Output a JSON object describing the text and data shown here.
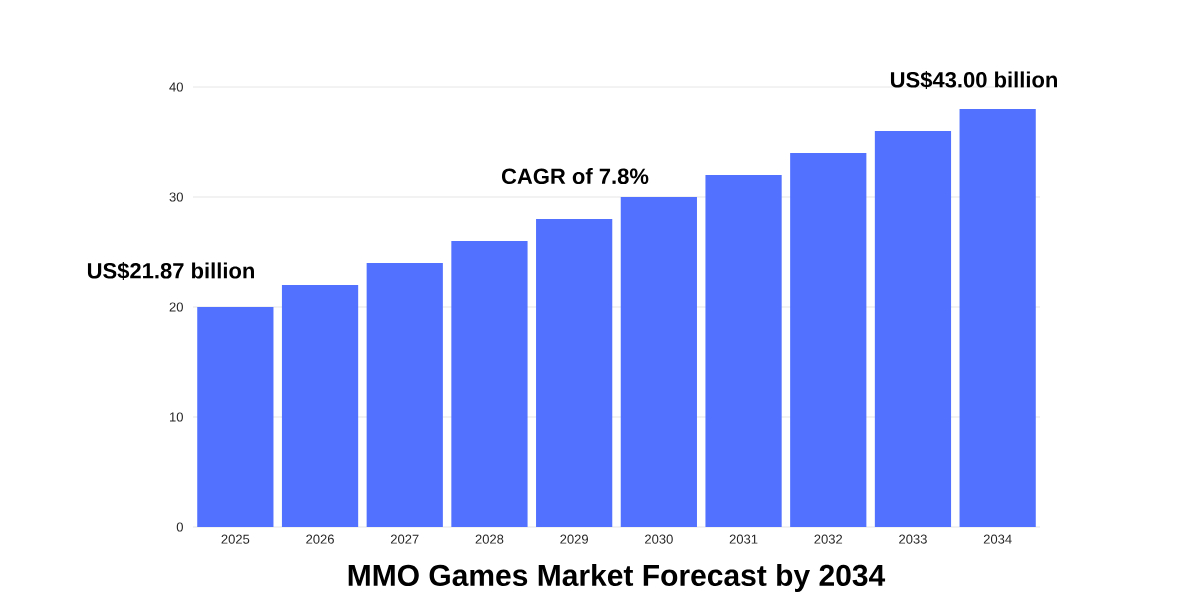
{
  "chart_data": {
    "type": "bar",
    "title": "MMO Games Market Forecast by 2034",
    "categories": [
      "2025",
      "2026",
      "2027",
      "2028",
      "2029",
      "2030",
      "2031",
      "2032",
      "2033",
      "2034"
    ],
    "values": [
      20,
      22,
      24,
      26,
      28,
      30,
      32,
      34,
      36,
      38
    ],
    "color": "#5271ff",
    "ylim": [
      0,
      40
    ],
    "yticks": [
      0,
      10,
      20,
      30,
      40
    ],
    "grid": "y",
    "annotations": [
      "US$21.87 billion",
      "CAGR of 7.8%",
      "US$43.00 billion"
    ]
  }
}
